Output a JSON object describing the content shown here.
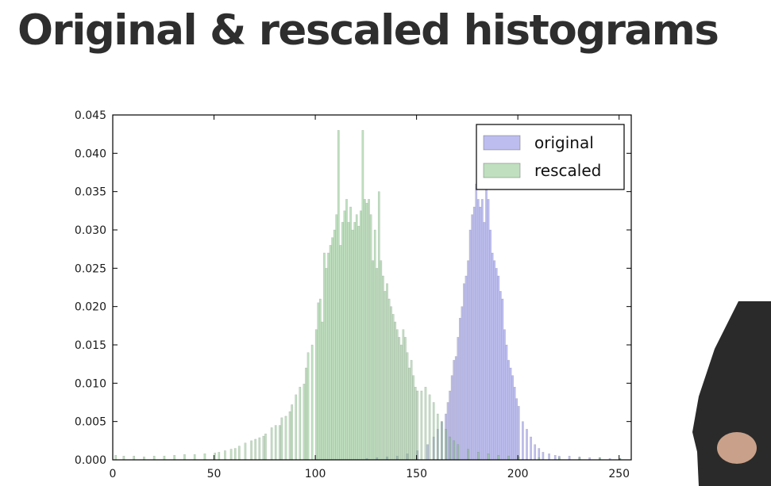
{
  "slide": {
    "title": "Original & rescaled histograms"
  },
  "chart_data": {
    "type": "bar",
    "title": "",
    "xlabel": "",
    "ylabel": "",
    "xlim": [
      0,
      256
    ],
    "ylim": [
      0,
      0.045
    ],
    "xticks": [
      0,
      50,
      100,
      150,
      200,
      250
    ],
    "yticks": [
      0.0,
      0.005,
      0.01,
      0.015,
      0.02,
      0.025,
      0.03,
      0.035,
      0.04,
      0.045
    ],
    "ytick_labels": [
      "0.000",
      "0.005",
      "0.010",
      "0.015",
      "0.020",
      "0.025",
      "0.030",
      "0.035",
      "0.040",
      "0.045"
    ],
    "grid": false,
    "legend_position": "top-right",
    "bin_width": 1,
    "series": [
      {
        "name": "original",
        "color": "#7b7be0",
        "alpha": 0.5,
        "x": [
          125,
          130,
          135,
          140,
          145,
          150,
          155,
          158,
          160,
          162,
          164,
          165,
          166,
          167,
          168,
          169,
          170,
          171,
          172,
          173,
          174,
          175,
          176,
          177,
          178,
          179,
          180,
          181,
          182,
          183,
          184,
          185,
          186,
          187,
          188,
          189,
          190,
          191,
          192,
          193,
          194,
          195,
          196,
          197,
          198,
          199,
          200,
          202,
          204,
          206,
          208,
          210,
          212,
          215,
          218,
          220,
          225,
          230,
          235,
          240,
          245,
          250
        ],
        "values": [
          0.0002,
          0.0003,
          0.0004,
          0.0005,
          0.0008,
          0.0012,
          0.002,
          0.003,
          0.004,
          0.005,
          0.006,
          0.0075,
          0.009,
          0.011,
          0.013,
          0.0135,
          0.016,
          0.0185,
          0.02,
          0.023,
          0.024,
          0.026,
          0.03,
          0.032,
          0.033,
          0.036,
          0.034,
          0.033,
          0.034,
          0.031,
          0.037,
          0.034,
          0.03,
          0.027,
          0.026,
          0.025,
          0.024,
          0.022,
          0.021,
          0.017,
          0.015,
          0.013,
          0.012,
          0.011,
          0.0095,
          0.008,
          0.007,
          0.005,
          0.004,
          0.003,
          0.002,
          0.0015,
          0.001,
          0.0008,
          0.0006,
          0.0005,
          0.0005,
          0.0004,
          0.0003,
          0.0003,
          0.0002,
          0.0002
        ]
      },
      {
        "name": "rescaled",
        "color": "#7fbf7f",
        "alpha": 0.5,
        "x": [
          1,
          5,
          10,
          15,
          20,
          25,
          30,
          35,
          40,
          45,
          50,
          52,
          55,
          58,
          60,
          62,
          65,
          68,
          70,
          72,
          74,
          75,
          78,
          80,
          82,
          83,
          85,
          87,
          88,
          90,
          92,
          94,
          95,
          96,
          98,
          100,
          101,
          102,
          103,
          104,
          105,
          106,
          107,
          108,
          109,
          110,
          111,
          112,
          113,
          114,
          115,
          116,
          117,
          118,
          119,
          120,
          121,
          122,
          123,
          124,
          125,
          126,
          127,
          128,
          129,
          130,
          131,
          132,
          133,
          134,
          135,
          136,
          137,
          138,
          139,
          140,
          141,
          142,
          143,
          144,
          145,
          146,
          147,
          148,
          149,
          150,
          152,
          154,
          156,
          158,
          160,
          162,
          164,
          166,
          168,
          170,
          175,
          180,
          185,
          190,
          195,
          200,
          210,
          220,
          230,
          240,
          250
        ],
        "values": [
          0.0006,
          0.0005,
          0.0005,
          0.0004,
          0.0005,
          0.0005,
          0.0006,
          0.0007,
          0.0007,
          0.0008,
          0.0009,
          0.001,
          0.0012,
          0.0014,
          0.0015,
          0.0018,
          0.0022,
          0.0025,
          0.0027,
          0.0029,
          0.0031,
          0.0034,
          0.0042,
          0.0045,
          0.0045,
          0.0055,
          0.0057,
          0.0063,
          0.0072,
          0.0085,
          0.0095,
          0.0099,
          0.012,
          0.014,
          0.015,
          0.017,
          0.0205,
          0.021,
          0.018,
          0.027,
          0.025,
          0.027,
          0.028,
          0.029,
          0.03,
          0.032,
          0.043,
          0.028,
          0.031,
          0.0325,
          0.034,
          0.031,
          0.033,
          0.03,
          0.031,
          0.032,
          0.0305,
          0.0325,
          0.043,
          0.034,
          0.0335,
          0.034,
          0.032,
          0.026,
          0.03,
          0.025,
          0.035,
          0.026,
          0.024,
          0.022,
          0.023,
          0.021,
          0.02,
          0.019,
          0.018,
          0.017,
          0.016,
          0.015,
          0.017,
          0.016,
          0.014,
          0.012,
          0.013,
          0.011,
          0.0095,
          0.009,
          0.009,
          0.0095,
          0.0085,
          0.0075,
          0.006,
          0.005,
          0.004,
          0.003,
          0.0025,
          0.002,
          0.0014,
          0.001,
          0.0008,
          0.0006,
          0.0005,
          0.0004,
          0.0003,
          0.0003,
          0.0003,
          0.0003,
          0.0002
        ]
      }
    ]
  }
}
